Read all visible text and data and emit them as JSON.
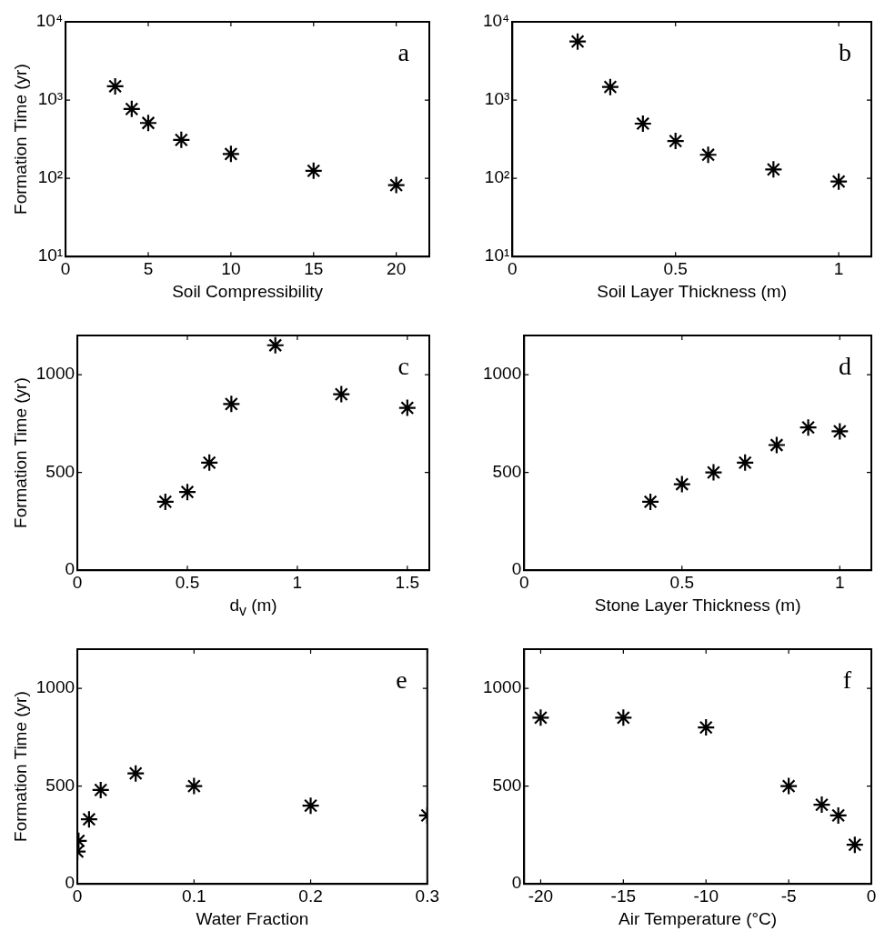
{
  "chart_data": [
    {
      "type": "scatter",
      "xlabel": "Soil Compressibility",
      "ylabel": "Formation Time (yr)",
      "annotations": [
        "a"
      ],
      "log": "y",
      "marker": "cross",
      "color": "#000000",
      "x": [
        3,
        4,
        5,
        7,
        10,
        15,
        20
      ],
      "values": [
        1500,
        770,
        510,
        310,
        205,
        125,
        82
      ],
      "xlim": [
        0,
        22
      ],
      "xticks": [
        0,
        5,
        10,
        15,
        20
      ],
      "ylim": [
        10,
        10000
      ],
      "yticks": [
        {
          "value": 10,
          "label": "10¹"
        },
        {
          "value": 100,
          "label": "10²"
        },
        {
          "value": 1000,
          "label": "10³"
        },
        {
          "value": 10000,
          "label": "10⁴"
        }
      ]
    },
    {
      "type": "scatter",
      "xlabel": "Soil Layer Thickness (m)",
      "annotations": [
        "b"
      ],
      "log": "y",
      "marker": "cross",
      "color": "#000000",
      "x": [
        0.2,
        0.3,
        0.4,
        0.5,
        0.6,
        0.8,
        1
      ],
      "values": [
        5600,
        1470,
        500,
        300,
        200,
        130,
        91
      ],
      "xlim": [
        0,
        1.1
      ],
      "xticks": [
        0,
        0.5,
        1
      ],
      "ylim": [
        10,
        10000
      ],
      "yticks": [
        {
          "value": 10,
          "label": "10¹"
        },
        {
          "value": 100,
          "label": "10²"
        },
        {
          "value": 1000,
          "label": "10³"
        },
        {
          "value": 10000,
          "label": "10⁴"
        }
      ]
    },
    {
      "type": "scatter",
      "xlabel": "d$_{v}$ (m)",
      "ylabel": "Formation Time (yr)",
      "annotations": [
        "c"
      ],
      "marker": "cross",
      "color": "#000000",
      "x": [
        0.4,
        0.5,
        0.6,
        0.7,
        0.9,
        1.2,
        1.5
      ],
      "values": [
        350,
        400,
        550,
        850,
        1150,
        900,
        830
      ],
      "xlim": [
        0,
        1.6
      ],
      "xticks": [
        0,
        0.5,
        1,
        1.5
      ],
      "ylim": [
        0,
        1200
      ],
      "yticks": [
        0,
        500,
        1000
      ]
    },
    {
      "type": "scatter",
      "xlabel": "Stone Layer Thickness (m)",
      "annotations": [
        "d"
      ],
      "marker": "cross",
      "color": "#000000",
      "x": [
        0.4,
        0.5,
        0.6,
        0.7,
        0.8,
        0.9,
        1
      ],
      "values": [
        350,
        440,
        500,
        550,
        640,
        730,
        710
      ],
      "xlim": [
        0,
        1.1
      ],
      "xticks": [
        0,
        0.5,
        1
      ],
      "ylim": [
        0,
        1200
      ],
      "yticks": [
        0,
        500,
        1000
      ]
    },
    {
      "type": "scatter",
      "xlabel": "Water Fraction",
      "ylabel": "Formation Time (yr)",
      "annotations": [
        "e"
      ],
      "marker": "cross",
      "color": "#000000",
      "x": [
        0,
        0.001,
        0.01,
        0.02,
        0.05,
        0.1,
        0.2,
        0.3
      ],
      "values": [
        165,
        220,
        330,
        480,
        565,
        500,
        400,
        350
      ],
      "xlim": [
        0,
        0.3
      ],
      "xticks": [
        0,
        0.1,
        0.2,
        0.3
      ],
      "ylim": [
        0,
        1200
      ],
      "yticks": [
        0,
        500,
        1000
      ]
    },
    {
      "type": "scatter",
      "xlabel": "Air Temperature (°C)",
      "annotations": [
        "f"
      ],
      "marker": "cross",
      "color": "#000000",
      "x": [
        -20,
        -15,
        -10,
        -5,
        -3,
        -2,
        -1
      ],
      "values": [
        850,
        850,
        800,
        500,
        405,
        350,
        200
      ],
      "xlim": [
        -21,
        0
      ],
      "xticks": [
        -20,
        -15,
        -10,
        -5,
        0
      ],
      "ylim": [
        0,
        1200
      ],
      "yticks": [
        0,
        500,
        1000
      ]
    }
  ]
}
